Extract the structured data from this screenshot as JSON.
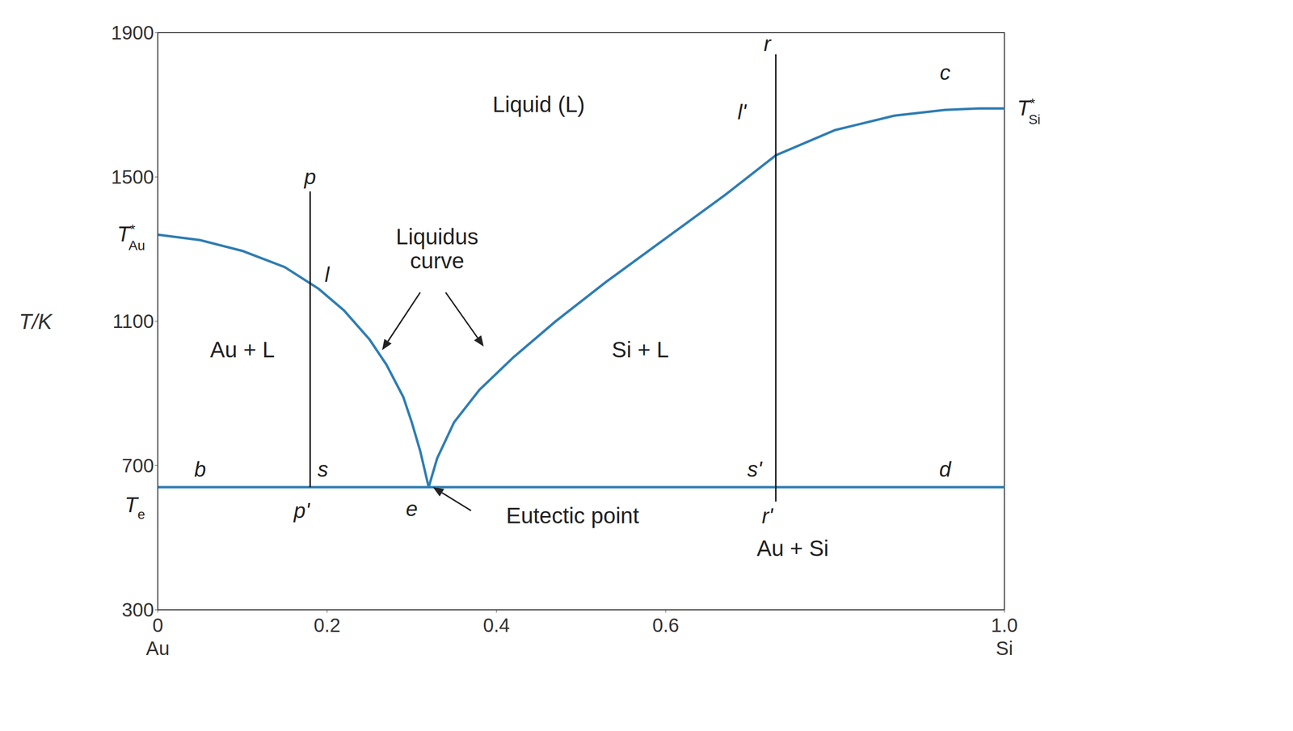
{
  "chart_data": {
    "type": "line",
    "ylabel": "T/K",
    "x_end_labels": [
      "Au",
      "Si"
    ],
    "xlim": [
      0,
      1
    ],
    "xticks": [
      0,
      0.2,
      0.4,
      0.6,
      {
        "value": 1,
        "label": "1.0"
      }
    ],
    "ylim": [
      300,
      1900
    ],
    "yticks": [
      300,
      700,
      1100,
      1500,
      1900
    ],
    "grid": false,
    "series": [
      {
        "color": "#2e7db3",
        "x": [
          0,
          0.05,
          0.1,
          0.15,
          0.19,
          0.22,
          0.25,
          0.27,
          0.29,
          0.3,
          0.31,
          0.32
        ],
        "values": [
          1340,
          1325,
          1295,
          1250,
          1190,
          1130,
          1050,
          980,
          890,
          820,
          740,
          640
        ]
      },
      {
        "color": "#2e7db3",
        "x": [
          0.32,
          0.33,
          0.35,
          0.38,
          0.42,
          0.47,
          0.53,
          0.6,
          0.67,
          0.73,
          0.8,
          0.87,
          0.93,
          0.97,
          1
        ],
        "values": [
          640,
          720,
          820,
          910,
          1000,
          1100,
          1210,
          1330,
          1450,
          1560,
          1630,
          1670,
          1686,
          1690,
          1690
        ]
      },
      {
        "color": "#2e7db3",
        "x": [
          0,
          1
        ],
        "values": [
          640,
          640
        ]
      },
      {
        "color": "#111111",
        "x": [
          0.18,
          0.18
        ],
        "values": [
          1460,
          640
        ]
      },
      {
        "color": "#111111",
        "x": [
          0.73,
          0.73
        ],
        "values": [
          1840,
          600
        ]
      }
    ],
    "annotations": [
      {
        "text": "Liquid (L)",
        "x": 0.45,
        "y": 1700
      },
      {
        "text": "Au + L",
        "x": 0.1,
        "y": 1020
      },
      {
        "text": "Si + L",
        "x": 0.57,
        "y": 1020
      },
      {
        "text": "Au + Si",
        "x": 0.75,
        "y": 470
      },
      {
        "text": "Liquidus curve",
        "x": 0.33,
        "y": 1300,
        "arrows": [
          [
            0.31,
            1180,
            0.265,
            1020
          ],
          [
            0.34,
            1180,
            0.385,
            1030
          ]
        ]
      },
      {
        "text": "Eutectic point",
        "x": 0.49,
        "y": 560,
        "arrows": [
          [
            0.37,
            575,
            0.325,
            640
          ]
        ]
      },
      {
        "text": "p",
        "x": 0.18,
        "y": 1500
      },
      {
        "text": "l",
        "x": 0.2,
        "y": 1230
      },
      {
        "text": "s",
        "x": 0.195,
        "y": 690
      },
      {
        "text": "p'",
        "x": 0.17,
        "y": 575
      },
      {
        "text": "e",
        "x": 0.3,
        "y": 580
      },
      {
        "text": "r",
        "x": 0.72,
        "y": 1870
      },
      {
        "text": "l'",
        "x": 0.69,
        "y": 1680
      },
      {
        "text": "s'",
        "x": 0.705,
        "y": 690
      },
      {
        "text": "r'",
        "x": 0.72,
        "y": 560
      },
      {
        "text": "b",
        "x": 0.05,
        "y": 690
      },
      {
        "text": "c",
        "x": 0.93,
        "y": 1790
      },
      {
        "text": "d",
        "x": 0.93,
        "y": 690
      },
      {
        "text": "T",
        "sup": "*",
        "sub": "Au",
        "x": -0.015,
        "y": 1340
      },
      {
        "text": "T",
        "sub": "e",
        "x": -0.015,
        "y": 590
      },
      {
        "text": "T",
        "sup": "*",
        "sub": "Si",
        "x": 1.015,
        "y": 1690
      }
    ]
  }
}
